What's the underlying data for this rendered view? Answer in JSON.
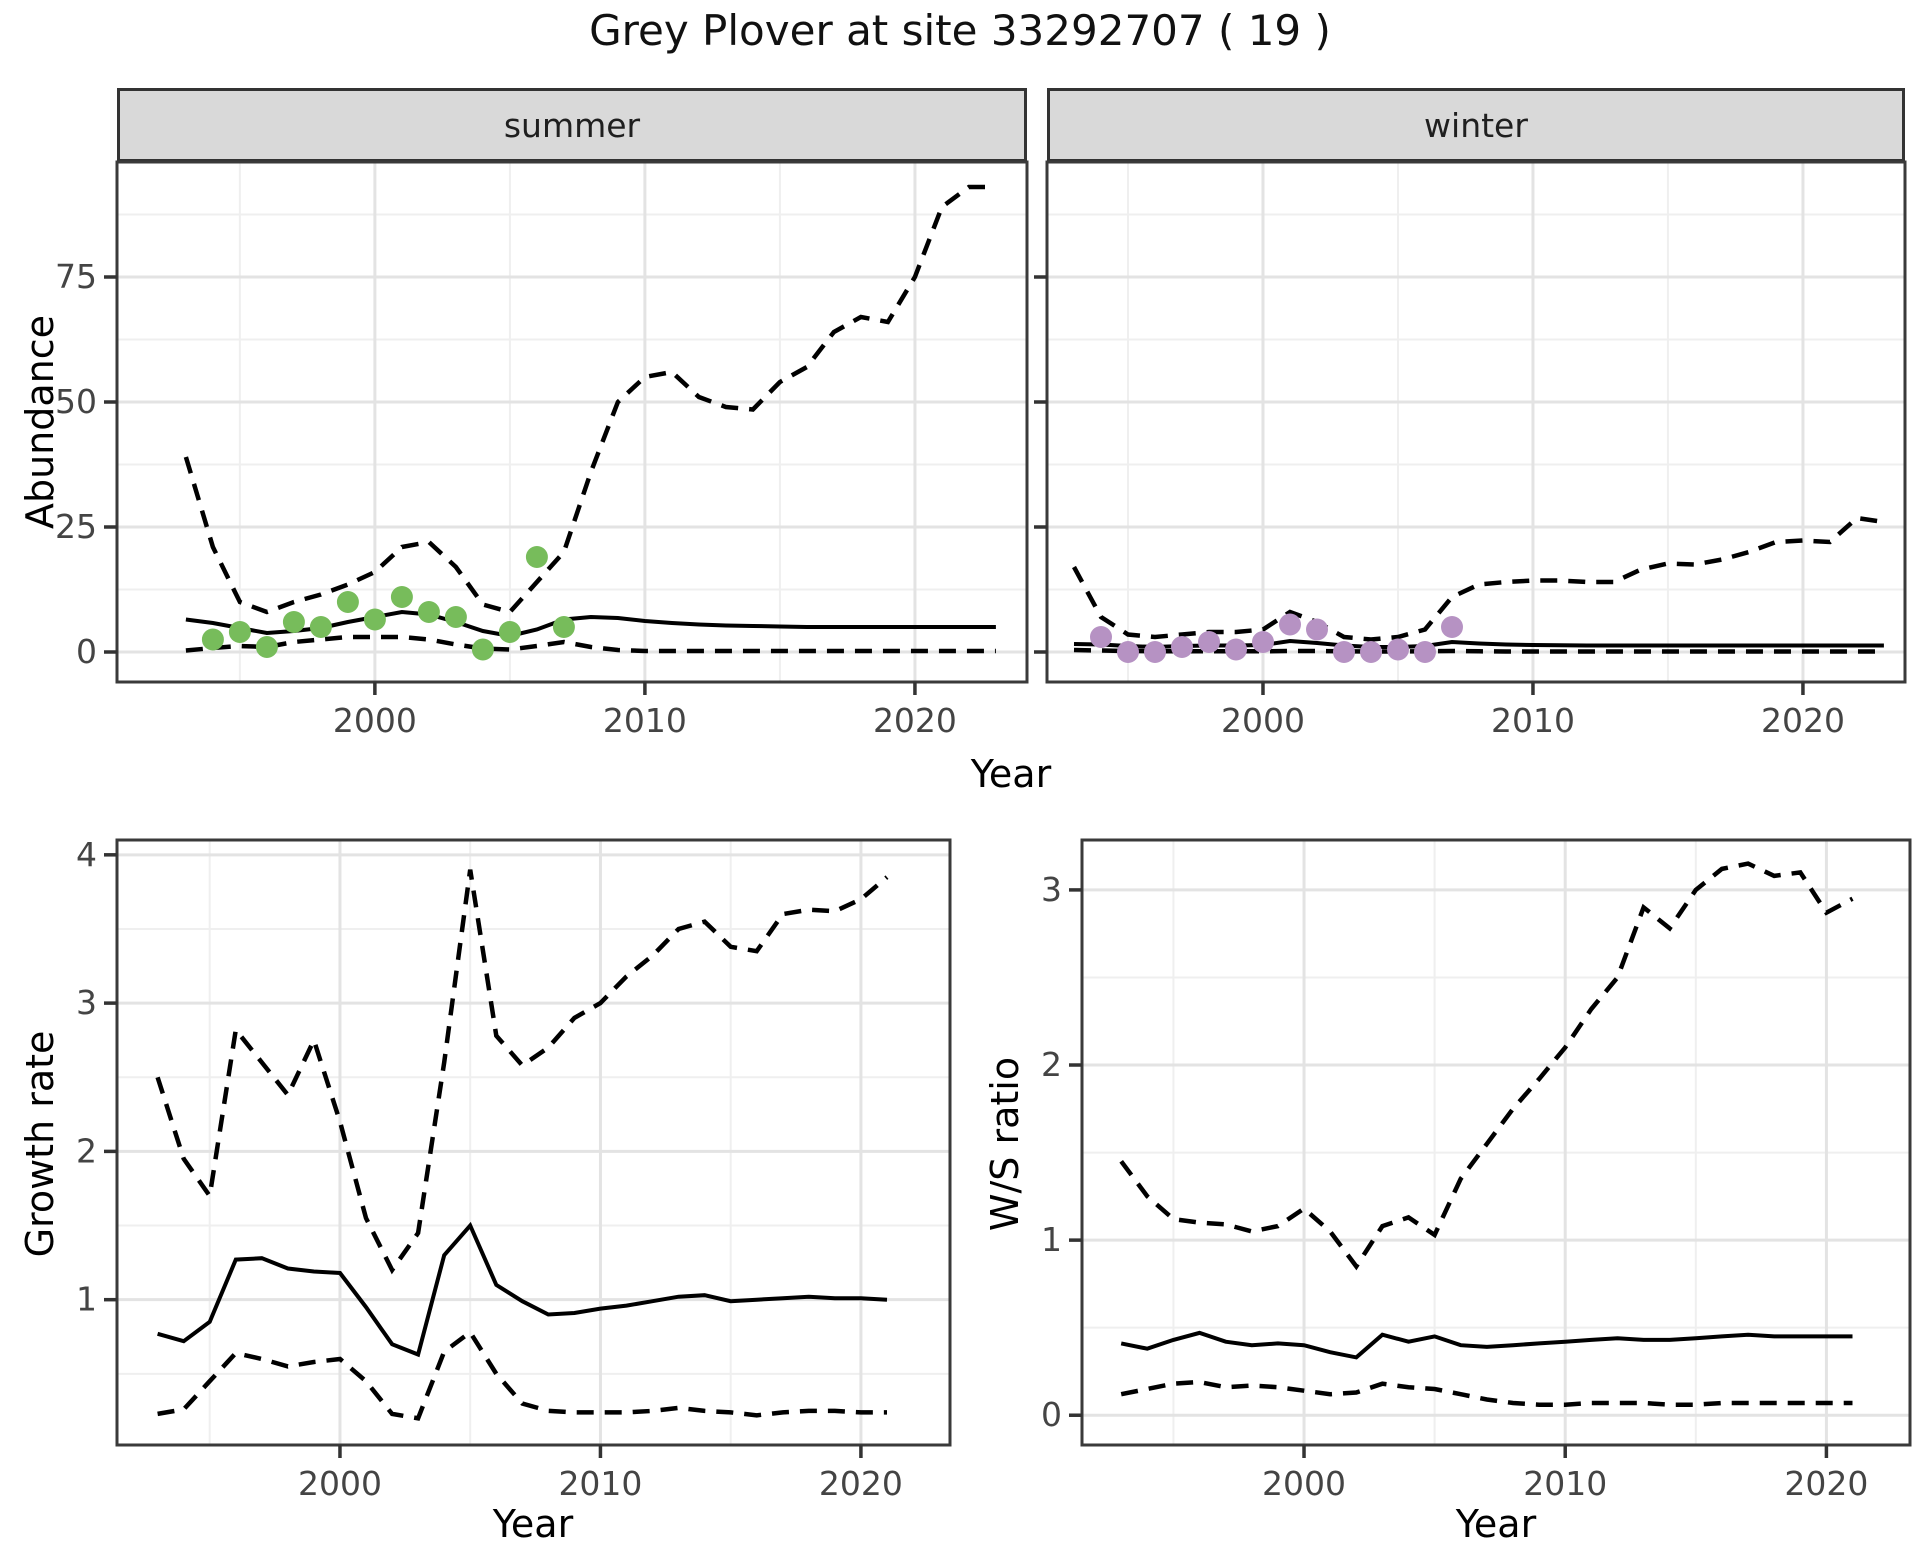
{
  "figure": {
    "title": "Grey Plover at site 33292707 ( 19 )",
    "background": "#ffffff"
  },
  "axis_titles": {
    "abundance": "Abundance",
    "growth": "Growth rate",
    "ws": "W/S ratio",
    "year": "Year"
  },
  "facets": {
    "summer": "summer",
    "winter": "winter"
  },
  "colors": {
    "summer_points": "#77BC5B",
    "winter_points": "#B692C3",
    "line": "#000000",
    "grid_major": "#e3e3e3",
    "grid_minor": "#efefef",
    "strip_bg": "#d9d9d9",
    "panel_border": "#3a3a3a",
    "axis_text": "#444444"
  },
  "chart_data": [
    {
      "id": "abundance-summer",
      "type": "line",
      "strip": "summer",
      "ylabel": "Abundance",
      "xlabel": "Year",
      "legend": "none",
      "grid": "on",
      "xlim": [
        1990.45,
        2024.15
      ],
      "ylim": [
        -6,
        98
      ],
      "xticks": [
        2000,
        2010,
        2020
      ],
      "xminor": [
        1995,
        2005,
        2015
      ],
      "yticks": [
        0,
        25,
        50,
        75
      ],
      "yminor": [
        12.5,
        37.5,
        62.5,
        87.5
      ],
      "x": [
        1993,
        1994,
        1995,
        1996,
        1997,
        1998,
        1999,
        2000,
        2001,
        2002,
        2003,
        2004,
        2005,
        2006,
        2007,
        2008,
        2009,
        2010,
        2011,
        2012,
        2013,
        2014,
        2015,
        2016,
        2017,
        2018,
        2019,
        2020,
        2021,
        2022,
        2023
      ],
      "series": [
        {
          "name": "median",
          "style": "solid",
          "values": [
            6.5,
            5.8,
            4.8,
            3.8,
            4.2,
            4.8,
            6,
            7,
            8,
            7.5,
            6,
            4.2,
            3.2,
            4.5,
            6.5,
            7,
            6.8,
            6.2,
            5.8,
            5.5,
            5.3,
            5.2,
            5.1,
            5,
            5,
            5,
            5,
            5,
            5,
            5,
            5
          ]
        },
        {
          "name": "upper95",
          "style": "dashed",
          "values": [
            39,
            21,
            10,
            8,
            10,
            11.5,
            13.5,
            16,
            21,
            22,
            17,
            9.5,
            8,
            14,
            20,
            36,
            50,
            55,
            56,
            51,
            49,
            48.5,
            54,
            57,
            64,
            67,
            66,
            75,
            89,
            93,
            93
          ]
        },
        {
          "name": "lower95",
          "style": "dashed",
          "values": [
            0.3,
            0.8,
            1.2,
            1,
            2,
            2.5,
            3,
            3,
            3,
            2.5,
            1.5,
            0.7,
            0.5,
            1.2,
            2,
            1,
            0.4,
            0.2,
            0.2,
            0.2,
            0.2,
            0.2,
            0.2,
            0.2,
            0.2,
            0.2,
            0.2,
            0.2,
            0.2,
            0.2,
            0.2
          ]
        }
      ],
      "points": {
        "name": "observed-summer-counts",
        "color": "#77BC5B",
        "years": [
          1994,
          1995,
          1996,
          1997,
          1998,
          1999,
          2000,
          2001,
          2002,
          2003,
          2004,
          2005,
          2006,
          2007
        ],
        "values": [
          2.5,
          4,
          1,
          6,
          5,
          10,
          6.5,
          11,
          8,
          7,
          0.5,
          4,
          19,
          5
        ]
      }
    },
    {
      "id": "abundance-winter",
      "type": "line",
      "strip": "winter",
      "ylabel": "Abundance",
      "xlabel": "Year",
      "legend": "none",
      "grid": "on",
      "xlim": [
        1992.0,
        2023.78
      ],
      "ylim": [
        -6,
        98
      ],
      "xticks": [
        2000,
        2010,
        2020
      ],
      "xminor": [
        1995,
        2005,
        2015
      ],
      "yticks": [
        0,
        25,
        50,
        75
      ],
      "yminor": [
        12.5,
        37.5,
        62.5,
        87.5
      ],
      "x": [
        1993,
        1994,
        1995,
        1996,
        1997,
        1998,
        1999,
        2000,
        2001,
        2002,
        2003,
        2004,
        2005,
        2006,
        2007,
        2008,
        2009,
        2010,
        2011,
        2012,
        2013,
        2014,
        2015,
        2016,
        2017,
        2018,
        2019,
        2020,
        2021,
        2022,
        2023
      ],
      "series": [
        {
          "name": "median",
          "style": "solid",
          "values": [
            1.6,
            1.5,
            1.2,
            1,
            1.2,
            1.3,
            1.3,
            1.4,
            2.2,
            1.8,
            1.3,
            1,
            1,
            1.2,
            2,
            1.7,
            1.5,
            1.4,
            1.35,
            1.3,
            1.3,
            1.3,
            1.3,
            1.3,
            1.3,
            1.3,
            1.3,
            1.3,
            1.3,
            1.3,
            1.3
          ]
        },
        {
          "name": "upper95",
          "style": "dashed",
          "values": [
            17,
            7,
            3.5,
            3,
            3.5,
            4,
            4,
            4.5,
            8,
            6,
            3,
            2.5,
            3,
            4.5,
            11,
            13.5,
            14,
            14.3,
            14.3,
            14,
            14,
            16.5,
            17.7,
            17.5,
            18.5,
            20,
            22,
            22.3,
            22,
            26.8,
            26
          ]
        },
        {
          "name": "lower95",
          "style": "dashed",
          "values": [
            0.4,
            0.3,
            0.2,
            0.15,
            0.15,
            0.15,
            0.15,
            0.15,
            0.2,
            0.2,
            0.15,
            0.1,
            0.1,
            0.15,
            0.2,
            0.15,
            0.1,
            0.1,
            0.1,
            0.1,
            0.1,
            0.1,
            0.1,
            0.1,
            0.1,
            0.1,
            0.1,
            0.1,
            0.1,
            0.1,
            0.1
          ]
        }
      ],
      "points": {
        "name": "observed-winter-counts",
        "color": "#B692C3",
        "years": [
          1994,
          1995,
          1996,
          1997,
          1998,
          1999,
          2000,
          2001,
          2002,
          2003,
          2004,
          2005,
          2006,
          2007
        ],
        "values": [
          3,
          0,
          0,
          1,
          2,
          0.5,
          2,
          5.5,
          4.5,
          0,
          0,
          0.5,
          0,
          5
        ]
      }
    },
    {
      "id": "growth-rate",
      "type": "line",
      "strip": null,
      "ylabel": "Growth rate",
      "xlabel": "Year",
      "legend": "none",
      "grid": "on",
      "xlim": [
        1991.44,
        2023.42
      ],
      "ylim": [
        0.02,
        4.1
      ],
      "xticks": [
        2000,
        2010,
        2020
      ],
      "xminor": [
        1995,
        2005,
        2015
      ],
      "yticks": [
        1,
        2,
        3,
        4
      ],
      "yminor": [
        0.5,
        1.5,
        2.5,
        3.5
      ],
      "x": [
        1993,
        1994,
        1995,
        1996,
        1997,
        1998,
        1999,
        2000,
        2001,
        2002,
        2003,
        2004,
        2005,
        2006,
        2007,
        2008,
        2009,
        2010,
        2011,
        2012,
        2013,
        2014,
        2015,
        2016,
        2017,
        2018,
        2019,
        2020,
        2021
      ],
      "series": [
        {
          "name": "median",
          "style": "solid",
          "values": [
            0.77,
            0.72,
            0.85,
            1.27,
            1.28,
            1.21,
            1.19,
            1.18,
            0.95,
            0.7,
            0.63,
            1.3,
            1.5,
            1.1,
            0.99,
            0.9,
            0.91,
            0.94,
            0.96,
            0.99,
            1.02,
            1.03,
            0.99,
            1,
            1.01,
            1.02,
            1.01,
            1.01,
            1
          ]
        },
        {
          "name": "upper95",
          "style": "dashed",
          "values": [
            2.5,
            1.95,
            1.7,
            2.82,
            2.6,
            2.38,
            2.75,
            2.2,
            1.55,
            1.2,
            1.45,
            2.6,
            3.9,
            2.78,
            2.58,
            2.7,
            2.9,
            3,
            3.18,
            3.32,
            3.5,
            3.55,
            3.38,
            3.35,
            3.6,
            3.63,
            3.62,
            3.7,
            3.85
          ]
        },
        {
          "name": "lower95",
          "style": "dashed",
          "values": [
            0.23,
            0.26,
            0.45,
            0.64,
            0.6,
            0.55,
            0.58,
            0.6,
            0.45,
            0.23,
            0.2,
            0.65,
            0.78,
            0.5,
            0.3,
            0.25,
            0.24,
            0.24,
            0.24,
            0.25,
            0.27,
            0.25,
            0.24,
            0.22,
            0.24,
            0.25,
            0.25,
            0.24,
            0.24
          ]
        }
      ],
      "points": null
    },
    {
      "id": "ws-ratio",
      "type": "line",
      "strip": null,
      "ylabel": "W/S ratio",
      "xlabel": "Year",
      "legend": "none",
      "grid": "on",
      "xlim": [
        1991.5,
        2023.2
      ],
      "ylim": [
        -0.17,
        3.285
      ],
      "xticks": [
        2000,
        2010,
        2020
      ],
      "xminor": [
        1995,
        2005,
        2015
      ],
      "yticks": [
        0,
        1,
        2,
        3
      ],
      "yminor": [
        0.5,
        1.5,
        2.5
      ],
      "x": [
        1993,
        1994,
        1995,
        1996,
        1997,
        1998,
        1999,
        2000,
        2001,
        2002,
        2003,
        2004,
        2005,
        2006,
        2007,
        2008,
        2009,
        2010,
        2011,
        2012,
        2013,
        2014,
        2015,
        2016,
        2017,
        2018,
        2019,
        2020,
        2021
      ],
      "series": [
        {
          "name": "median",
          "style": "solid",
          "values": [
            0.41,
            0.38,
            0.43,
            0.47,
            0.42,
            0.4,
            0.41,
            0.4,
            0.36,
            0.33,
            0.46,
            0.42,
            0.45,
            0.4,
            0.39,
            0.4,
            0.41,
            0.42,
            0.43,
            0.44,
            0.43,
            0.43,
            0.44,
            0.45,
            0.46,
            0.45,
            0.45,
            0.45,
            0.45
          ]
        },
        {
          "name": "upper95",
          "style": "dashed",
          "values": [
            1.45,
            1.25,
            1.12,
            1.1,
            1.09,
            1.05,
            1.08,
            1.18,
            1.05,
            0.85,
            1.08,
            1.13,
            1.03,
            1.35,
            1.55,
            1.75,
            1.92,
            2.1,
            2.32,
            2.5,
            2.9,
            2.78,
            3,
            3.12,
            3.15,
            3.08,
            3.1,
            2.87,
            2.95
          ]
        },
        {
          "name": "lower95",
          "style": "dashed",
          "values": [
            0.12,
            0.15,
            0.18,
            0.19,
            0.16,
            0.17,
            0.16,
            0.14,
            0.12,
            0.13,
            0.18,
            0.16,
            0.15,
            0.12,
            0.09,
            0.07,
            0.06,
            0.06,
            0.07,
            0.07,
            0.07,
            0.06,
            0.06,
            0.07,
            0.07,
            0.07,
            0.07,
            0.07,
            0.07
          ]
        }
      ],
      "points": null
    }
  ]
}
